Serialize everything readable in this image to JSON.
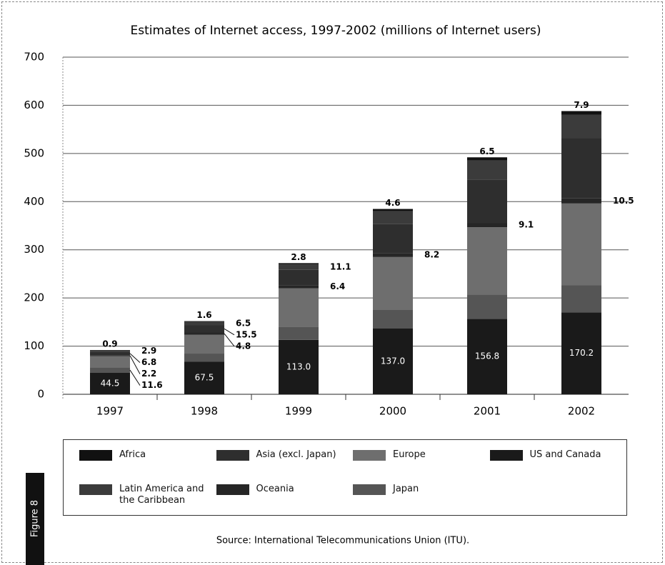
{
  "chart_data": {
    "type": "bar",
    "stacked": true,
    "title": "Estimates of Internet access, 1997-2002 (millions of Internet users)",
    "source": "Source: International Telecommunications Union (ITU).",
    "figure_label": "Figure 8",
    "categories": [
      "1997",
      "1998",
      "1999",
      "2000",
      "2001",
      "2002"
    ],
    "ylim": [
      0,
      700
    ],
    "yticks": [
      0,
      100,
      200,
      300,
      400,
      500,
      600,
      700
    ],
    "grid": true,
    "series": [
      {
        "name": "Africa",
        "color": "#111111",
        "values": [
          0.9,
          1.6,
          2.8,
          4.6,
          6.5,
          7.9
        ],
        "value_labels": [
          "0.9",
          "1.6",
          "2.8",
          "4.6",
          "6.5",
          "7.9"
        ]
      },
      {
        "name": "Latin America and the Caribbean",
        "color": "#3b3b3b",
        "values": [
          2.9,
          6.5,
          11.1,
          27,
          39.6,
          48.4
        ],
        "value_labels": [
          "2.9",
          "6.5",
          "11.1",
          null,
          null,
          null
        ]
      },
      {
        "name": "Asia (excl. Japan)",
        "color": "#2e2e2e",
        "values": [
          6.8,
          15.5,
          32,
          60,
          90,
          125
        ],
        "value_labels": [
          "6.8",
          "15.5",
          null,
          null,
          null,
          null
        ]
      },
      {
        "name": "Oceania",
        "color": "#262626",
        "values": [
          2.2,
          4.8,
          6.4,
          8.2,
          9.1,
          10.5
        ],
        "value_labels": [
          "2.2",
          "4.8",
          "6.4",
          "8.2",
          "9.1",
          "10.5"
        ]
      },
      {
        "name": "Europe",
        "color": "#6e6e6e",
        "values": [
          23,
          39,
          80,
          110,
          140,
          170
        ],
        "value_labels": [
          null,
          null,
          null,
          null,
          null,
          null
        ]
      },
      {
        "name": "Japan",
        "color": "#555555",
        "values": [
          11.6,
          17,
          27,
          38,
          50,
          56
        ],
        "value_labels": [
          "11.6",
          null,
          null,
          null,
          null,
          null
        ]
      },
      {
        "name": "US and Canada",
        "color": "#1a1a1a",
        "values": [
          44.5,
          67.5,
          113,
          137,
          156.8,
          170.2
        ],
        "value_labels": [
          "44.5",
          "67.5",
          "113.0",
          "137.0",
          "156.8",
          "170.2"
        ]
      }
    ]
  }
}
